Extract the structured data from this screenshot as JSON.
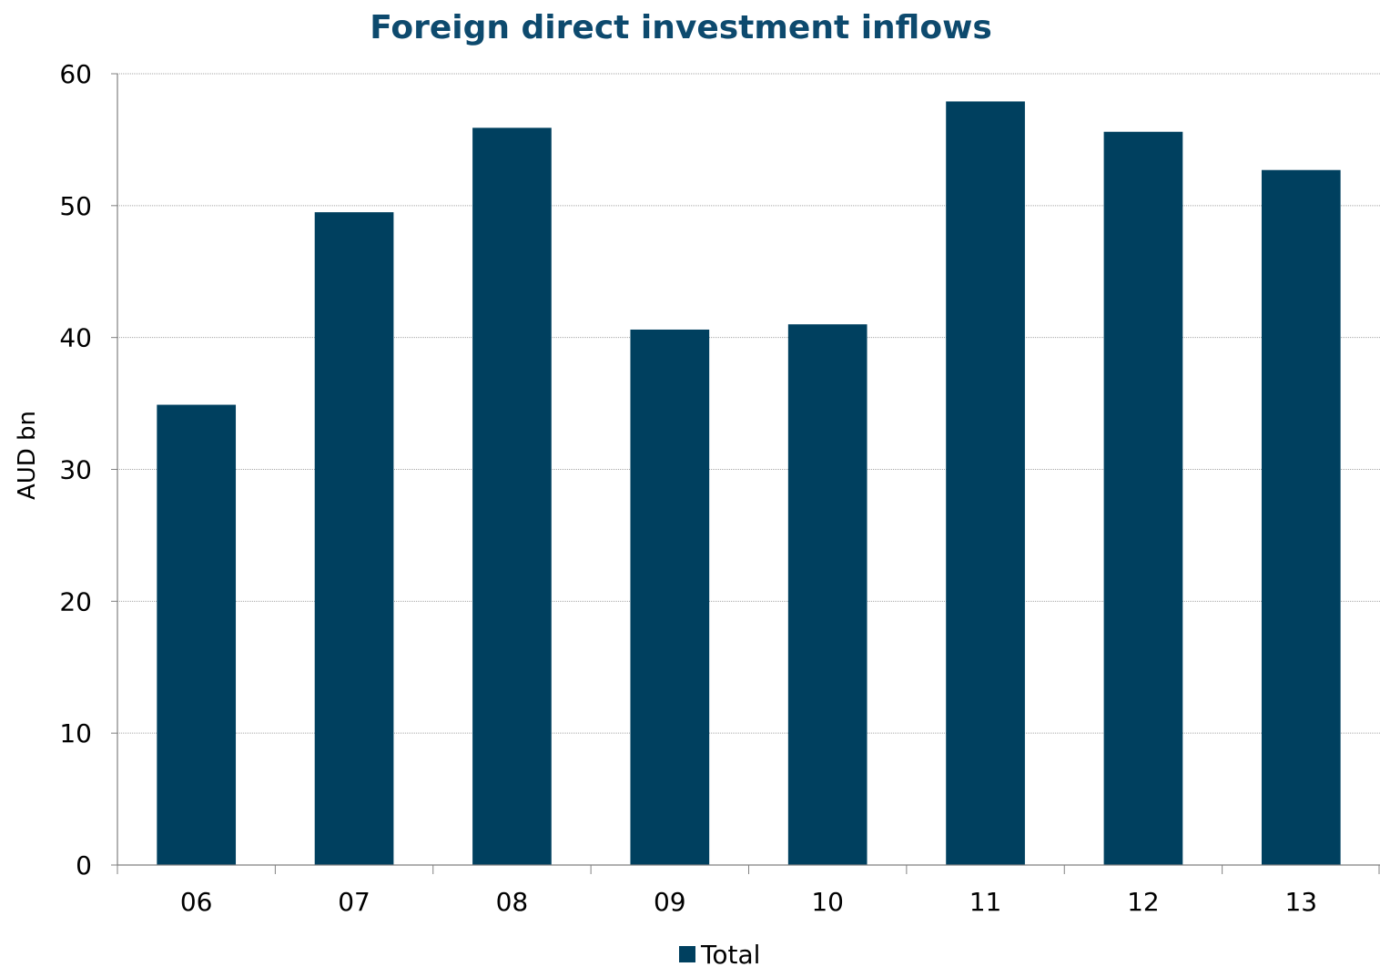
{
  "chart_data": {
    "type": "bar",
    "title": "Foreign direct investment inflows",
    "xlabel": "",
    "ylabel": "AUD bn",
    "categories": [
      "06",
      "07",
      "08",
      "09",
      "10",
      "11",
      "12",
      "13"
    ],
    "series": [
      {
        "name": "Total",
        "values": [
          34.9,
          49.5,
          55.9,
          40.6,
          41.0,
          57.9,
          55.6,
          52.7
        ],
        "color": "#00405f"
      }
    ],
    "ylim": [
      0,
      60
    ],
    "yticks": [
      "0",
      "10",
      "20",
      "30",
      "40",
      "50",
      "60"
    ],
    "grid": true,
    "legend": "bottom"
  }
}
